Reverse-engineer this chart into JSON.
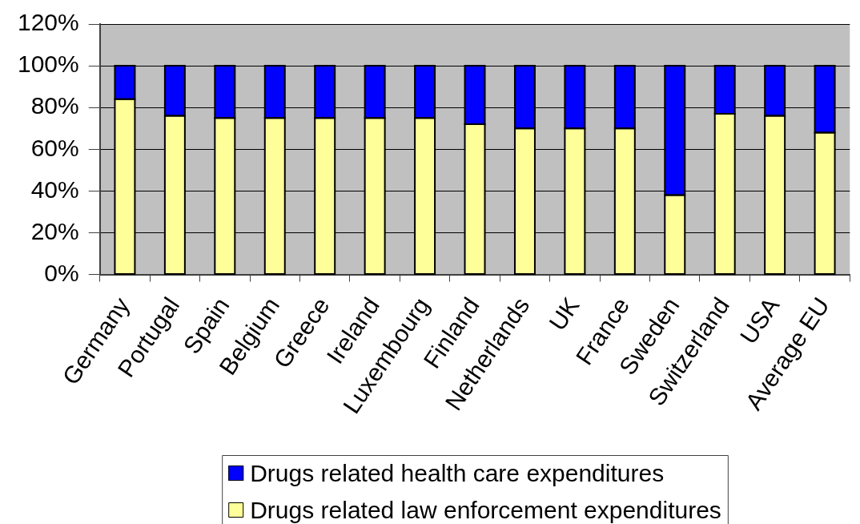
{
  "chart_data": {
    "type": "bar",
    "stacked": true,
    "categories": [
      "Germany",
      "Portugal",
      "Spain",
      "Belgium",
      "Greece",
      "Ireland",
      "Luxembourg",
      "Finland",
      "Netherlands",
      "UK",
      "France",
      "Sweden",
      "Switzerland",
      "USA",
      "Average EU"
    ],
    "series": [
      {
        "name": "Drugs related law enforcement expenditures",
        "color": "#ffff99",
        "values": [
          84,
          76,
          75,
          75,
          75,
          75,
          75,
          72,
          70,
          70,
          70,
          38,
          77,
          76,
          68
        ]
      },
      {
        "name": "Drugs related health care expenditures",
        "color": "#0000ff",
        "values": [
          16,
          24,
          25,
          25,
          25,
          25,
          25,
          28,
          30,
          30,
          30,
          62,
          23,
          24,
          32
        ]
      }
    ],
    "ylim": [
      0,
      120
    ],
    "yticks": [
      {
        "value": 0,
        "label": "0%"
      },
      {
        "value": 20,
        "label": "20%"
      },
      {
        "value": 40,
        "label": "40%"
      },
      {
        "value": 60,
        "label": "60%"
      },
      {
        "value": 80,
        "label": "80%"
      },
      {
        "value": 100,
        "label": "100%"
      },
      {
        "value": 120,
        "label": "120%"
      }
    ],
    "grid": "y",
    "legend": "bottom"
  }
}
